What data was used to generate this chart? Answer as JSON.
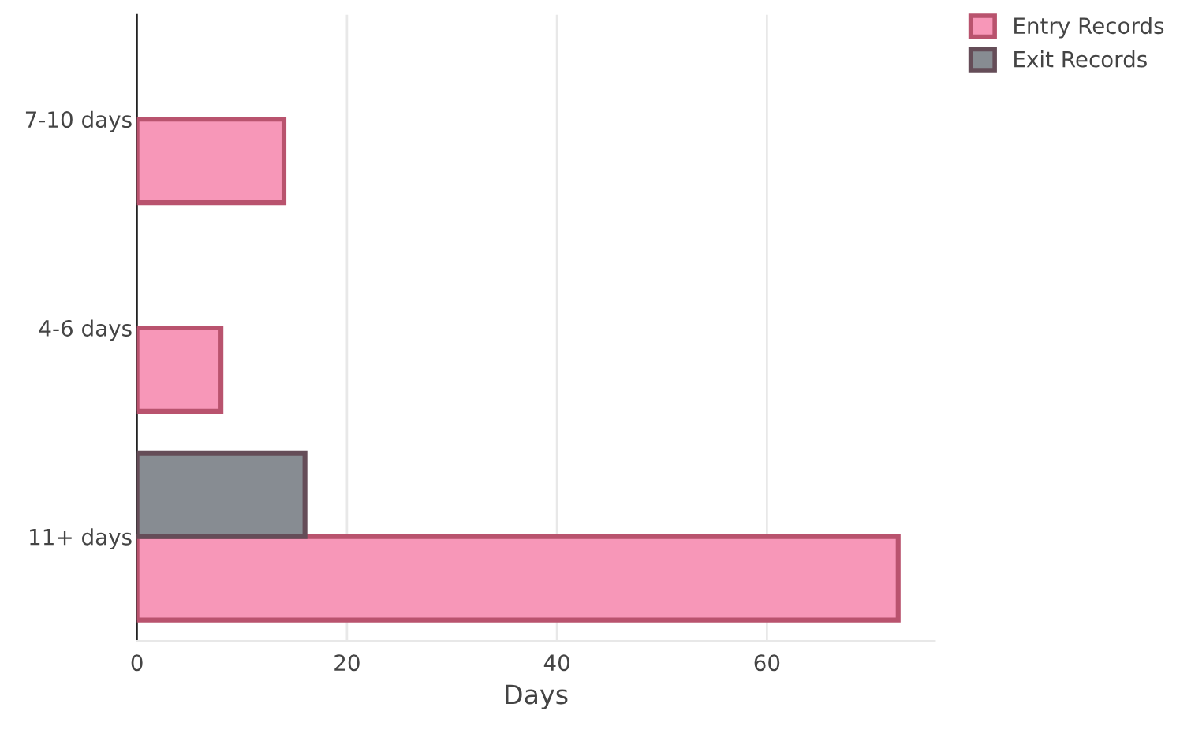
{
  "chart_data": {
    "type": "bar",
    "orientation": "horizontal",
    "xlabel": "Days",
    "categories": [
      "7-10 days",
      "4-6 days",
      "11+ days"
    ],
    "series": [
      {
        "name": "Entry Records",
        "color": "#f797b8",
        "values": [
          14,
          8,
          72.5
        ]
      },
      {
        "name": "Exit Records",
        "color": "#878c92",
        "values": [
          null,
          null,
          16
        ]
      }
    ],
    "xlim": [
      0,
      76
    ],
    "xticks": [
      0,
      20,
      40,
      60
    ],
    "grid": "x",
    "legend": "top right"
  }
}
